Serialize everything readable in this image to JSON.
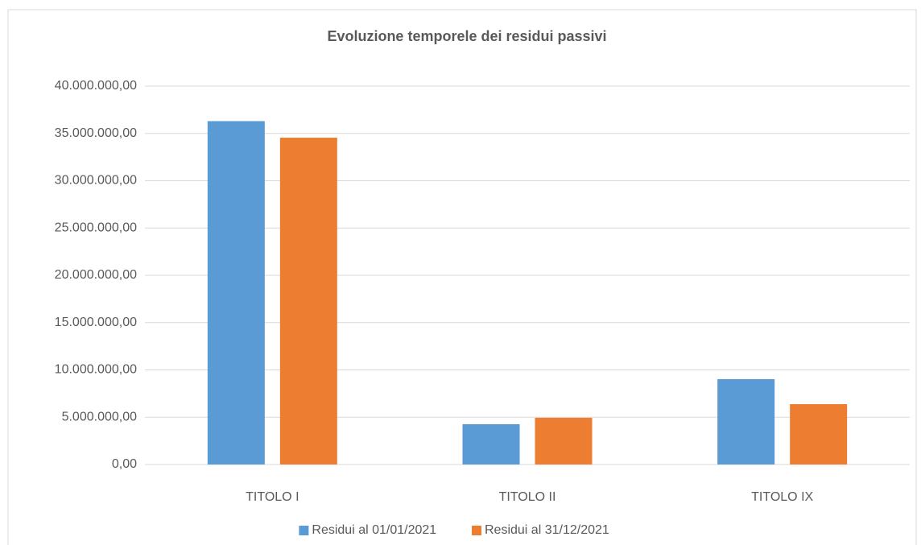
{
  "chart_data": {
    "type": "bar",
    "title": "Evoluzione temporele dei residui passivi",
    "categories": [
      "TITOLO I",
      "TITOLO II",
      "TITOLO IX"
    ],
    "series": [
      {
        "name": "Residui al 01/01/2021",
        "color": "#5b9bd5",
        "values": [
          36300000,
          4260000,
          9020000
        ]
      },
      {
        "name": "Residui al 31/12/2021",
        "color": "#ed7d31",
        "values": [
          34550000,
          4940000,
          6380000
        ]
      }
    ],
    "ylim": [
      0,
      40000000
    ],
    "yticks": [
      {
        "value": 0,
        "label": "0,00"
      },
      {
        "value": 5000000,
        "label": "5.000.000,00"
      },
      {
        "value": 10000000,
        "label": "10.000.000,00"
      },
      {
        "value": 15000000,
        "label": "15.000.000,00"
      },
      {
        "value": 20000000,
        "label": "20.000.000,00"
      },
      {
        "value": 25000000,
        "label": "25.000.000,00"
      },
      {
        "value": 30000000,
        "label": "30.000.000,00"
      },
      {
        "value": 35000000,
        "label": "35.000.000,00"
      },
      {
        "value": 40000000,
        "label": "40.000.000,00"
      }
    ],
    "grid": true,
    "legend": "bottom"
  }
}
